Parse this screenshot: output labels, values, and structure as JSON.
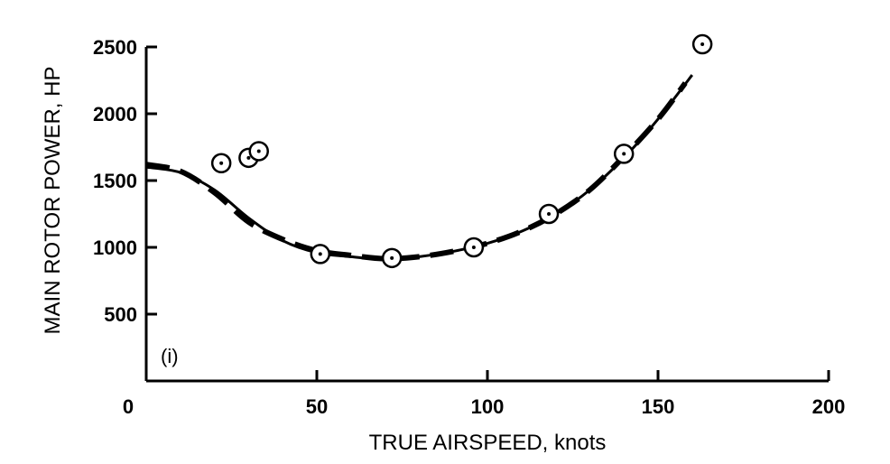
{
  "chart_data": {
    "type": "scatter",
    "xlabel": "TRUE AIRSPEED, knots",
    "ylabel": "MAIN ROTOR POWER, HP",
    "xlim": [
      0,
      200
    ],
    "ylim": [
      0,
      2500
    ],
    "x_ticks": [
      0,
      50,
      100,
      150,
      200
    ],
    "y_ticks": [
      500,
      1000,
      1500,
      2000,
      2500
    ],
    "annotation": "(i)",
    "grid": false,
    "series": [
      {
        "style": "circle-markers",
        "x": [
          22,
          30,
          33,
          51,
          72,
          96,
          118,
          140,
          163
        ],
        "y": [
          1630,
          1670,
          1720,
          950,
          920,
          1000,
          1250,
          1700,
          2520
        ]
      },
      {
        "style": "solid-line",
        "x": [
          0,
          10,
          20,
          30,
          40,
          50,
          60,
          70,
          80,
          90,
          100,
          110,
          120,
          130,
          140,
          150,
          160
        ],
        "y": [
          1600,
          1560,
          1430,
          1220,
          1050,
          960,
          930,
          910,
          930,
          970,
          1030,
          1120,
          1250,
          1430,
          1670,
          1960,
          2290
        ]
      },
      {
        "style": "dashed-line",
        "x": [
          0,
          10,
          20,
          30,
          40,
          50,
          60,
          70,
          80,
          90,
          100,
          110,
          120,
          130,
          140,
          150,
          158
        ],
        "y": [
          1620,
          1570,
          1410,
          1190,
          1060,
          975,
          940,
          915,
          930,
          970,
          1030,
          1120,
          1250,
          1430,
          1680,
          1960,
          2230
        ]
      }
    ]
  }
}
